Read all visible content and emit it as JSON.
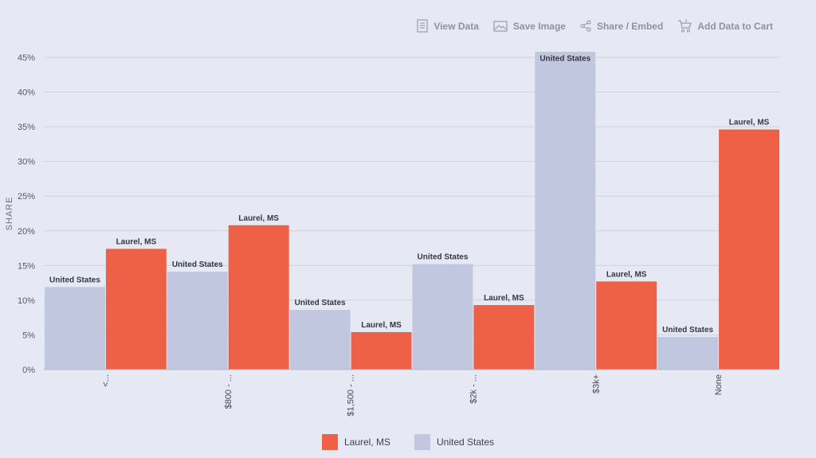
{
  "toolbar": {
    "view_data": "View Data",
    "save_image": "Save Image",
    "share_embed": "Share / Embed",
    "add_to_cart": "Add Data to Cart"
  },
  "colors": {
    "laurel": "#ef6146",
    "us": "#c0c7de",
    "grid": "#cdd1df",
    "background": "#e6e9f4"
  },
  "legend": {
    "laurel": "Laurel, MS",
    "us": "United States"
  },
  "chart_data": {
    "type": "bar",
    "ylabel": "SHARE",
    "xlabel": "",
    "ylim": [
      0,
      45
    ],
    "yticks": [
      "0%",
      "5%",
      "10%",
      "15%",
      "20%",
      "25%",
      "30%",
      "35%",
      "40%",
      "45%"
    ],
    "categories": [
      "<...",
      "$800 - ...",
      "$1,500 - ...",
      "$2k - ...",
      "$3k+",
      "None"
    ],
    "series": [
      {
        "name": "United States",
        "color": "#c0c7de",
        "values": [
          11.9,
          14.1,
          8.6,
          15.2,
          45.8,
          4.7
        ]
      },
      {
        "name": "Laurel, MS",
        "color": "#ef6146",
        "values": [
          17.4,
          20.8,
          5.4,
          9.3,
          12.7,
          34.6
        ]
      }
    ],
    "grid": true,
    "legend_position": "bottom"
  }
}
